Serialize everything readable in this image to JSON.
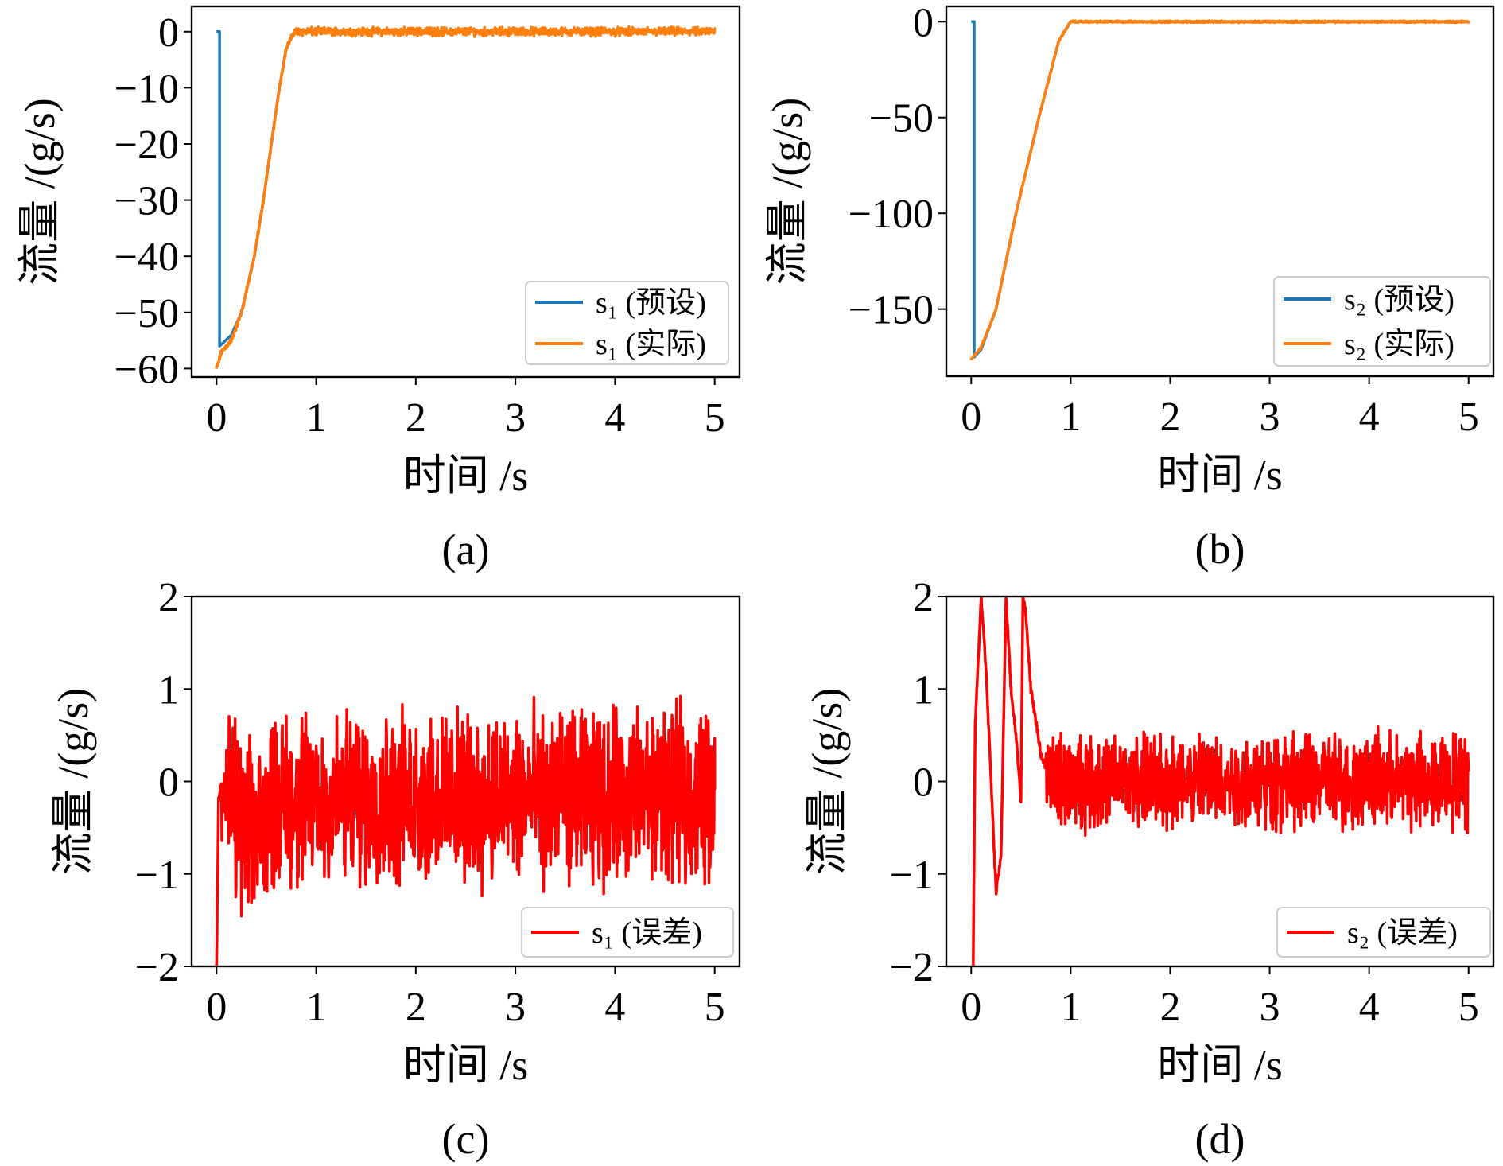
{
  "chart_data": [
    {
      "type": "line",
      "caption": "(a)",
      "xlabel": "时间 /s",
      "ylabel": "流量 /(g/s)",
      "xlim": [
        -0.25,
        5.25
      ],
      "ylim": [
        -61.5,
        4.5
      ],
      "xticks": [
        0,
        1,
        2,
        3,
        4,
        5
      ],
      "yticks": [
        0,
        -10,
        -20,
        -30,
        -40,
        -50,
        -60
      ],
      "ytick_labels": [
        "0",
        "−10",
        "−20",
        "−30",
        "−40",
        "−50",
        "−60"
      ],
      "legend": "lower-right",
      "series": [
        {
          "name": "s₁ (预设)",
          "color": "#1f77b4",
          "noise": 0,
          "x": [
            0,
            0.03,
            0.03,
            0.15,
            0.25,
            0.38,
            0.47,
            0.55,
            0.63,
            0.7,
            0.78,
            5
          ],
          "y": [
            0,
            0,
            -56,
            -54,
            -50,
            -40,
            -30,
            -20,
            -10,
            -3,
            0,
            0
          ]
        },
        {
          "name": "s₁ (实际)",
          "color": "#ff7f0e",
          "noise": 0.9,
          "x": [
            0,
            0.05,
            0.15,
            0.25,
            0.38,
            0.47,
            0.55,
            0.63,
            0.7,
            0.78,
            5
          ],
          "y": [
            -60,
            -57,
            -55,
            -50,
            -40,
            -30,
            -20,
            -10,
            -3,
            0,
            0
          ]
        }
      ]
    },
    {
      "type": "line",
      "caption": "(b)",
      "xlabel": "时间 /s",
      "ylabel": "流量 /(g/s)",
      "xlim": [
        -0.25,
        5.25
      ],
      "ylim": [
        -185,
        8
      ],
      "xticks": [
        0,
        1,
        2,
        3,
        4,
        5
      ],
      "yticks": [
        0,
        -50,
        -100,
        -150
      ],
      "ytick_labels": [
        "0",
        "−50",
        "−100",
        "−150"
      ],
      "legend": "lower-right",
      "series": [
        {
          "name": "s₂ (预设)",
          "color": "#1f77b4",
          "noise": 0,
          "x": [
            0,
            0.03,
            0.03,
            0.1,
            0.25,
            0.45,
            0.68,
            0.88,
            1.0,
            5
          ],
          "y": [
            0,
            0,
            -175,
            -171,
            -150,
            -100,
            -50,
            -10,
            0,
            0
          ]
        },
        {
          "name": "s₂ (实际)",
          "color": "#ff7f0e",
          "noise": 0.6,
          "x": [
            0,
            0.1,
            0.25,
            0.45,
            0.68,
            0.88,
            1.0,
            5
          ],
          "y": [
            -176,
            -170,
            -150,
            -100,
            -50,
            -10,
            0,
            0
          ]
        }
      ]
    },
    {
      "type": "line",
      "caption": "(c)",
      "xlabel": "时间 /s",
      "ylabel": "流量 /(g/s)",
      "xlim": [
        -0.25,
        5.25
      ],
      "ylim": [
        -2,
        2
      ],
      "xticks": [
        0,
        1,
        2,
        3,
        4,
        5
      ],
      "yticks": [
        2,
        1,
        0,
        -1,
        -2
      ],
      "ytick_labels": [
        "2",
        "1",
        "0",
        "−1",
        "−2"
      ],
      "legend": "lower-right",
      "series": [
        {
          "name": "s₁ (误差)",
          "color": "#ff0000",
          "noise": 1.1,
          "x": [
            0,
            0.02,
            0.05,
            0.3,
            0.6,
            5
          ],
          "y": [
            -2,
            -0.2,
            0,
            -0.6,
            -0.2,
            -0.15
          ]
        }
      ]
    },
    {
      "type": "line",
      "caption": "(d)",
      "xlabel": "时间 /s",
      "ylabel": "流量 /(g/s)",
      "xlim": [
        -0.25,
        5.25
      ],
      "ylim": [
        -2,
        2
      ],
      "xticks": [
        0,
        1,
        2,
        3,
        4,
        5
      ],
      "yticks": [
        2,
        1,
        0,
        -1,
        -2
      ],
      "ytick_labels": [
        "2",
        "1",
        "0",
        "−1",
        "−2"
      ],
      "legend": "lower-right",
      "series": [
        {
          "name": "s₂ (误差)",
          "color": "#ff0000",
          "noise": 0.6,
          "x": [
            0.02,
            0.04,
            0.1,
            0.15,
            0.2,
            0.25,
            0.3,
            0.35,
            0.4,
            0.45,
            0.5,
            0.52,
            0.55,
            0.6,
            0.7,
            0.8,
            5
          ],
          "y": [
            -2,
            0.6,
            2,
            1.2,
            0,
            -1.2,
            -0.8,
            2,
            1,
            0.5,
            -0.2,
            2,
            1.8,
            1,
            0.3,
            0,
            0
          ]
        }
      ]
    }
  ]
}
